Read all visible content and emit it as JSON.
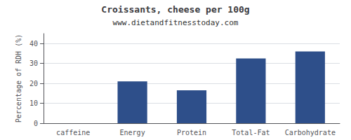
{
  "chart_data": {
    "type": "bar",
    "title": "Croissants, cheese per 100g",
    "subtitle": "www.dietandfitnesstoday.com",
    "categories": [
      "caffeine",
      "Energy",
      "Protein",
      "Total-Fat",
      "Carbohydrate"
    ],
    "values": [
      0,
      21,
      16.5,
      32.5,
      36
    ],
    "color": "#2e4f8a",
    "ylabel": "Percentage of RDH (%)",
    "ylim": [
      0,
      45
    ],
    "yticks": [
      0,
      10,
      20,
      30,
      40
    ],
    "grid": true
  }
}
